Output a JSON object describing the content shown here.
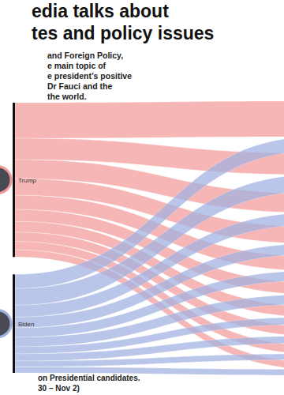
{
  "chart_data": {
    "type": "sankey",
    "title": [
      "edia talks about",
      "tes and policy issues"
    ],
    "subtitle": [
      "and Foreign Policy,",
      "e main topic of",
      "e president’s positive",
      "Dr Fauci and the",
      "the world."
    ],
    "notes": [
      "on Presidential candidates.",
      "30 – Nov 2)"
    ],
    "nodes": [
      {
        "label": "Trump",
        "color": "#f29a9a"
      },
      {
        "label": "Biden",
        "color": "#9fb0e0"
      },
      {
        "label": null
      },
      {
        "label": null
      },
      {
        "label": null
      },
      {
        "label": null
      },
      {
        "label": null
      },
      {
        "label": null
      },
      {
        "label": null
      },
      {
        "label": null
      },
      {
        "label": null
      },
      {
        "label": null
      }
    ],
    "links": [
      {
        "source": 0,
        "target": 2,
        "value": 30
      },
      {
        "source": 0,
        "target": 3,
        "value": 18
      },
      {
        "source": 0,
        "target": 4,
        "value": 16
      },
      {
        "source": 0,
        "target": 5,
        "value": 14
      },
      {
        "source": 0,
        "target": 6,
        "value": 12
      },
      {
        "source": 0,
        "target": 7,
        "value": 10
      },
      {
        "source": 0,
        "target": 8,
        "value": 9
      },
      {
        "source": 0,
        "target": 9,
        "value": 8
      },
      {
        "source": 0,
        "target": 10,
        "value": 7
      },
      {
        "source": 0,
        "target": 11,
        "value": 6
      },
      {
        "source": 1,
        "target": 2,
        "value": 12
      },
      {
        "source": 1,
        "target": 3,
        "value": 14
      },
      {
        "source": 1,
        "target": 4,
        "value": 10
      },
      {
        "source": 1,
        "target": 5,
        "value": 9
      },
      {
        "source": 1,
        "target": 6,
        "value": 8
      },
      {
        "source": 1,
        "target": 7,
        "value": 8
      },
      {
        "source": 1,
        "target": 8,
        "value": 6
      },
      {
        "source": 1,
        "target": 9,
        "value": 6
      },
      {
        "source": 1,
        "target": 10,
        "value": 5
      },
      {
        "source": 1,
        "target": 11,
        "value": 5
      }
    ]
  }
}
